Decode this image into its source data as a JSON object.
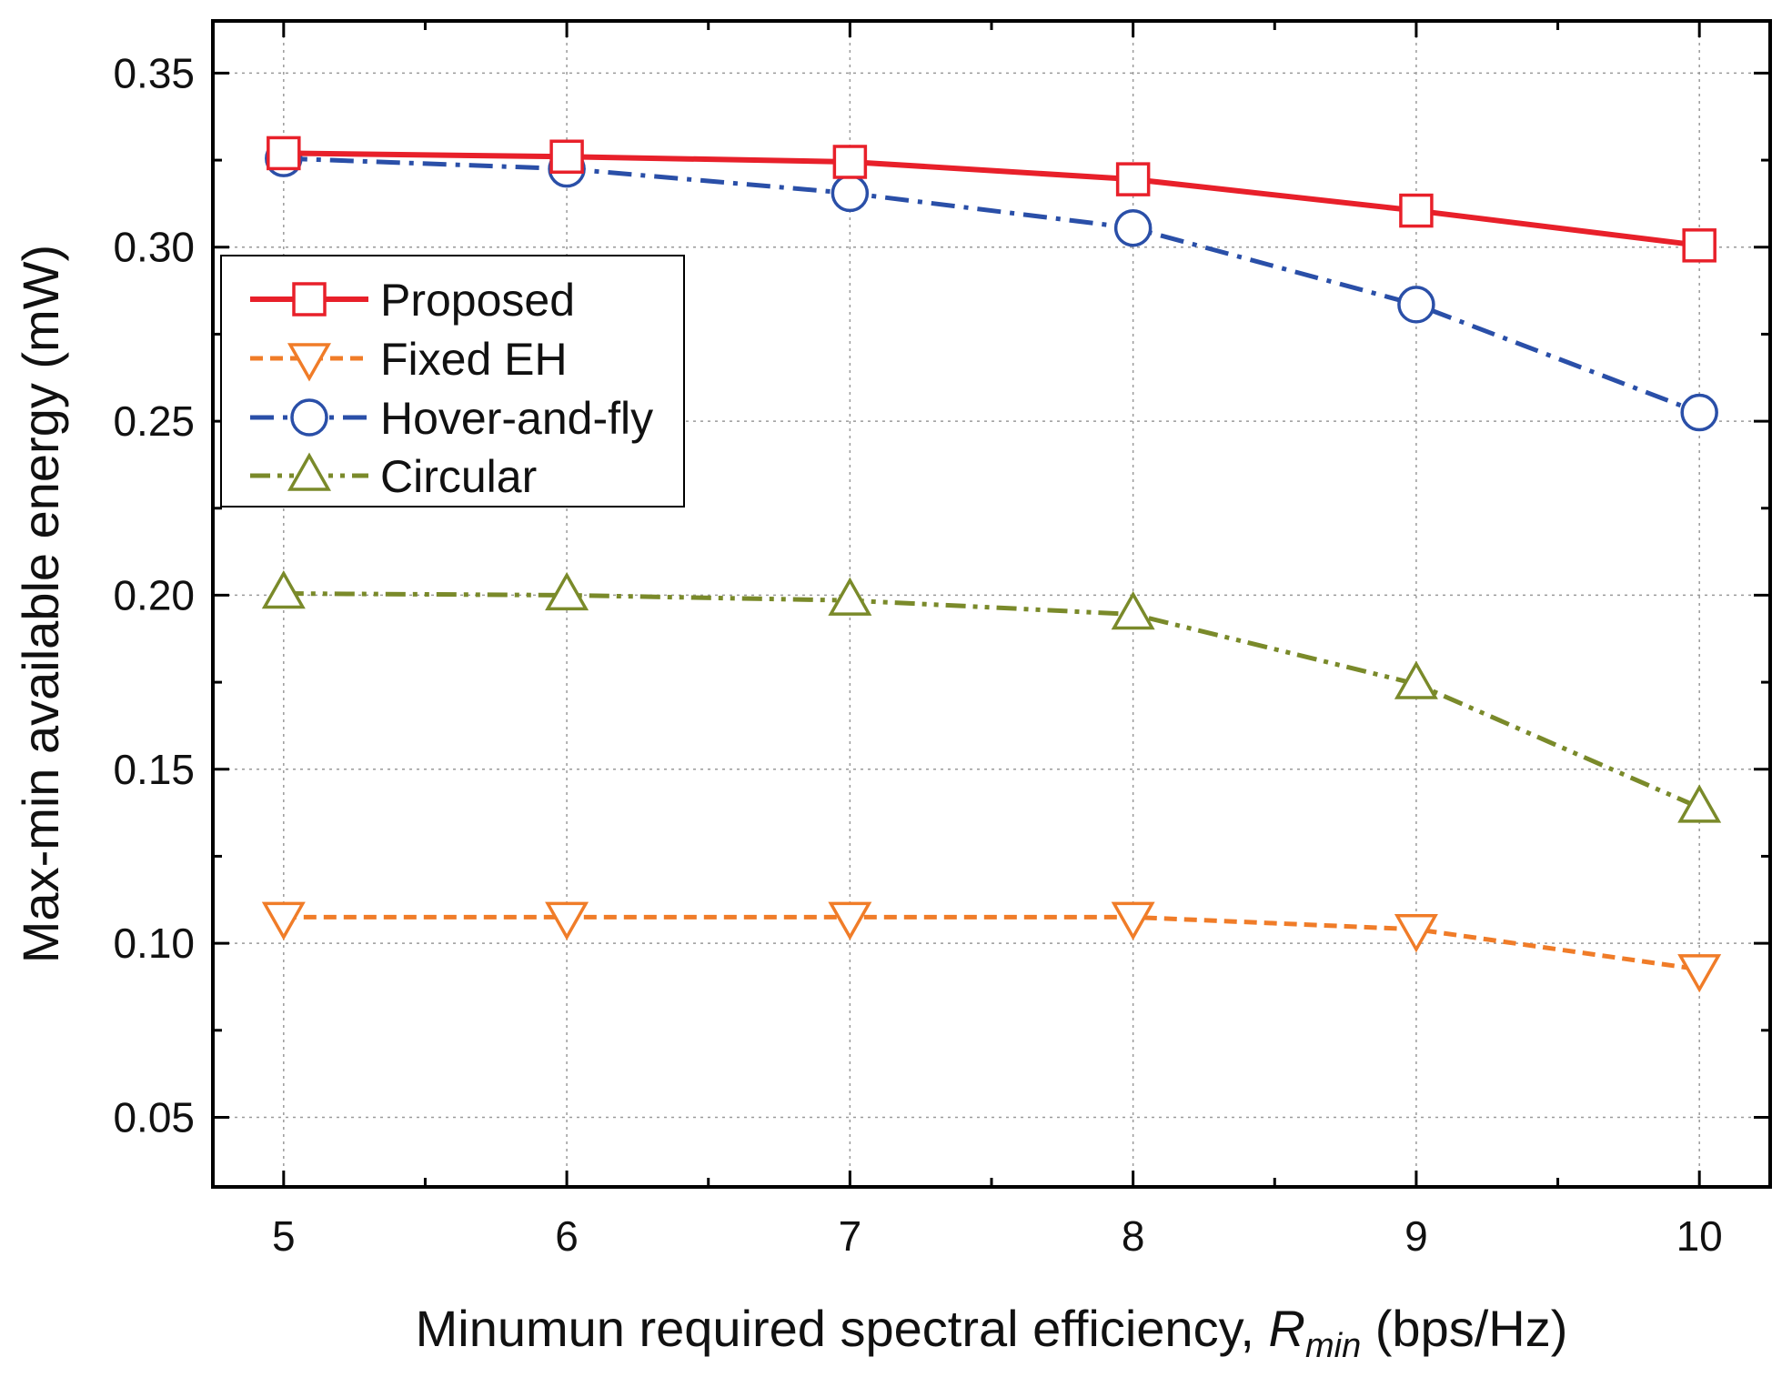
{
  "chart_data": {
    "type": "line",
    "title": "",
    "xlabel": {
      "prefix": "Minumun required spectral efficiency, ",
      "symbol": "R",
      "subscript": "min",
      "suffix": " (bps/Hz)"
    },
    "ylabel": "Max-min available energy (mW)",
    "xlim": [
      4.75,
      10.25
    ],
    "ylim": [
      0.03,
      0.365
    ],
    "grid": true,
    "legend_position": "upper-left",
    "x": [
      5,
      6,
      7,
      8,
      9,
      10
    ],
    "x_ticks": [
      "5",
      "6",
      "7",
      "8",
      "9",
      "10"
    ],
    "y_ticks": [
      {
        "value": 0.05,
        "label": "0.05"
      },
      {
        "value": 0.1,
        "label": "0.10"
      },
      {
        "value": 0.15,
        "label": "0.15"
      },
      {
        "value": 0.2,
        "label": "0.20"
      },
      {
        "value": 0.25,
        "label": "0.25"
      },
      {
        "value": 0.3,
        "label": "0.30"
      },
      {
        "value": 0.35,
        "label": "0.35"
      }
    ],
    "series": [
      {
        "name": "Proposed",
        "values": [
          0.327,
          0.326,
          0.3245,
          0.3195,
          0.3105,
          0.3005
        ],
        "color": "#e8202a",
        "marker": "square",
        "dash": "solid"
      },
      {
        "name": "Fixed EH",
        "values": [
          0.1075,
          0.1075,
          0.1075,
          0.1075,
          0.104,
          0.0925
        ],
        "color": "#f07c28",
        "marker": "triangle-down",
        "dash": "dashed"
      },
      {
        "name": "Hover-and-fly",
        "values": [
          0.3255,
          0.3225,
          0.3155,
          0.3055,
          0.2835,
          0.2525
        ],
        "color": "#2a4fa8",
        "marker": "circle",
        "dash": "dashdot"
      },
      {
        "name": "Circular",
        "values": [
          0.2005,
          0.2,
          0.1985,
          0.1945,
          0.1745,
          0.139
        ],
        "color": "#7a8a2a",
        "marker": "triangle-up",
        "dash": "dashdotdot"
      }
    ]
  }
}
